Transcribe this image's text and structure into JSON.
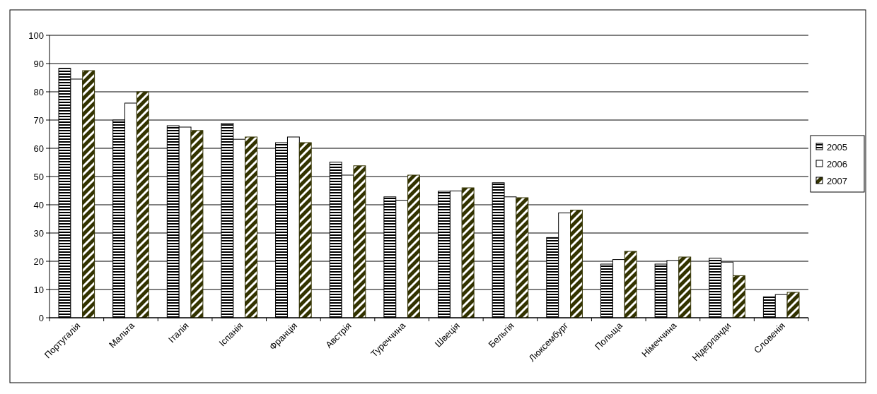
{
  "chart_data": {
    "type": "bar",
    "categories": [
      "Португалія",
      "Мальта",
      "Італія",
      "Іспанія",
      "Франція",
      "Австрія",
      "Туреччина",
      "Швеція",
      "Бельгія",
      "Люксембург",
      "Польща",
      "Німеччина",
      "Нідерланди",
      "Словенія"
    ],
    "series": [
      {
        "name": "2005",
        "color": "#000000",
        "values": [
          88.3,
          70,
          68,
          68.8,
          62,
          55.1,
          42.8,
          44.8,
          47.8,
          28.4,
          19,
          19,
          21.1,
          7.4
        ]
      },
      {
        "name": "2006",
        "color": "#ffffff",
        "values": [
          84.5,
          76,
          67.5,
          63.2,
          64,
          50.5,
          41.6,
          44.9,
          42.8,
          37.1,
          20.6,
          20.3,
          19.7,
          8.2
        ]
      },
      {
        "name": "2007",
        "color": "#333300",
        "values": [
          87.5,
          80,
          66.3,
          64,
          62,
          53.8,
          50.5,
          46,
          42.5,
          38.1,
          23.5,
          21.5,
          14.9,
          9
        ]
      }
    ],
    "ylim": [
      0,
      100
    ],
    "yticks": [
      0,
      10,
      20,
      30,
      40,
      50,
      60,
      70,
      80,
      90,
      100
    ],
    "grid": "y",
    "legend": "right"
  }
}
